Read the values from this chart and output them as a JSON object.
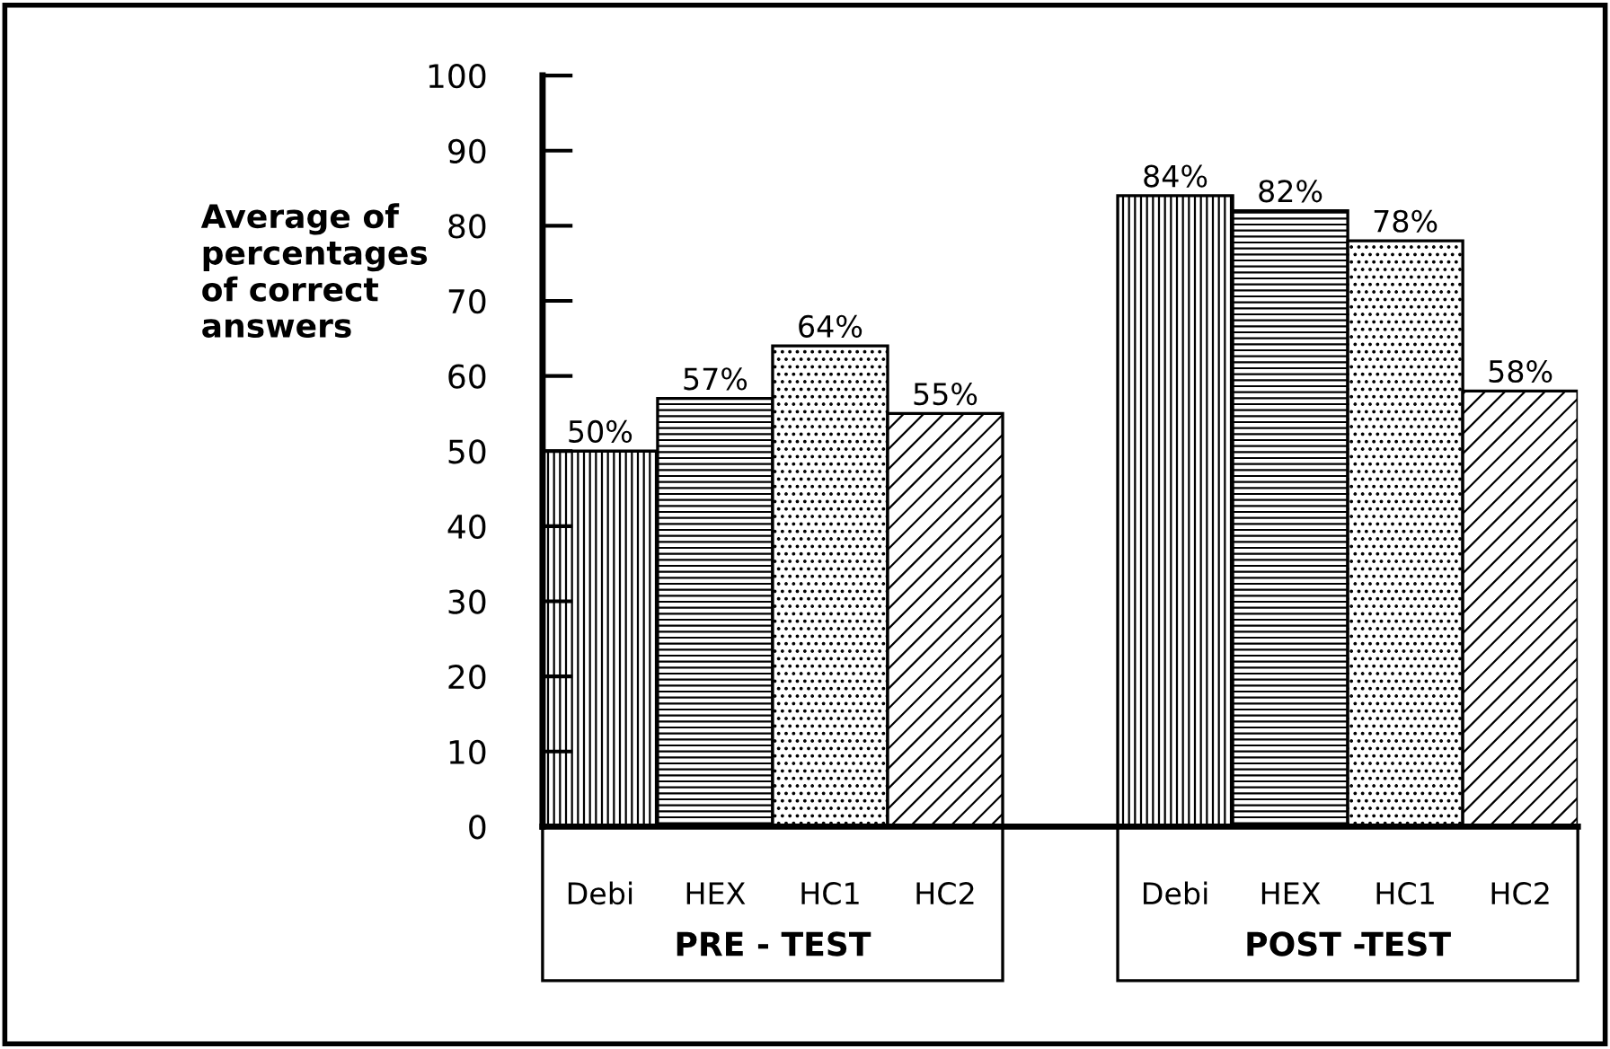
{
  "chart_data": {
    "type": "bar",
    "categories": [
      "Debi",
      "HEX",
      "HC1",
      "HC2",
      null,
      "Debi",
      "HEX",
      "HC1",
      "HC2"
    ],
    "values": [
      50,
      57,
      64,
      55,
      null,
      84,
      82,
      78,
      58
    ],
    "value_labels": [
      "50%",
      "57%",
      "64%",
      "55%",
      null,
      "84%",
      "82%",
      "78%",
      "58%"
    ],
    "colors": [
      "#000000",
      "#000000",
      "#000000",
      "#000000",
      null,
      "#000000",
      "#000000",
      "#000000",
      "#000000"
    ],
    "ylabel": "Average of\npercentages\nof correct\nanswers",
    "annotations": [
      "PRE - TEST",
      "POST -TEST"
    ],
    "ylim": [
      0,
      100
    ],
    "yticks": [
      0,
      10,
      20,
      30,
      40,
      50,
      60,
      70,
      80,
      90,
      100
    ],
    "grid": false
  }
}
